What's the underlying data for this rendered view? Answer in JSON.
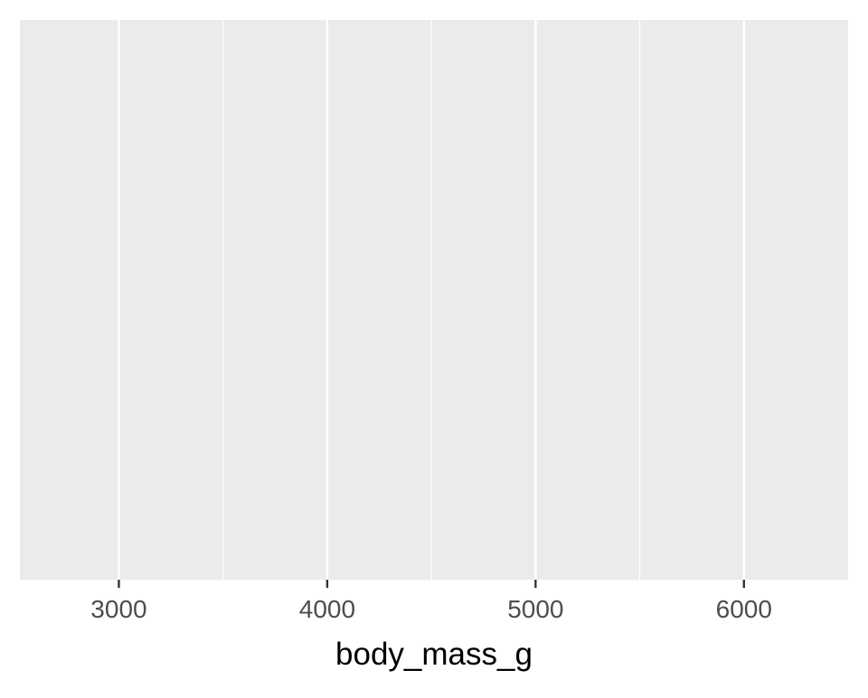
{
  "chart_data": {
    "type": "scatter",
    "title": "",
    "xlabel": "body_mass_g",
    "ylabel": "",
    "xlim": [
      2525,
      6500
    ],
    "x_ticks": [
      3000,
      4000,
      5000,
      6000
    ],
    "x_tick_labels": [
      "3000",
      "4000",
      "5000",
      "6000"
    ],
    "x_minor_gridlines": [
      3500,
      4500,
      5500
    ],
    "y_ticks": [],
    "series": [],
    "grid": true,
    "colors": {
      "panel_background": "#EBEBEB",
      "gridline": "#FFFFFF",
      "tick_mark": "#333333",
      "tick_label": "#4D4D4D",
      "axis_title": "#000000",
      "page_background": "#FFFFFF"
    }
  }
}
